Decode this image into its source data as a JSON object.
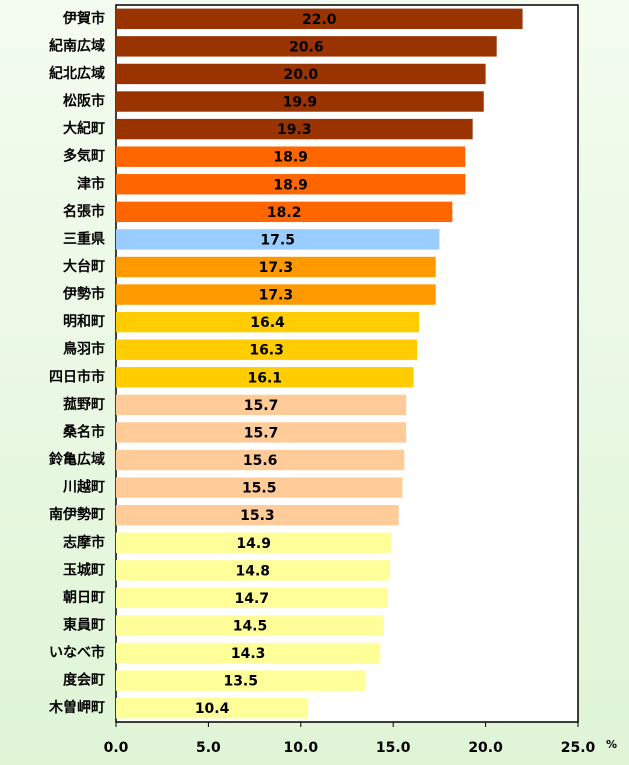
{
  "chart_data": {
    "type": "bar",
    "orientation": "horizontal",
    "categories": [
      "伊賀市",
      "紀南広域",
      "紀北広域",
      "松阪市",
      "大紀町",
      "多気町",
      "津市",
      "名張市",
      "三重県",
      "大台町",
      "伊勢市",
      "明和町",
      "鳥羽市",
      "四日市市",
      "菰野町",
      "桑名市",
      "鈴亀広域",
      "川越町",
      "南伊勢町",
      "志摩市",
      "玉城町",
      "朝日町",
      "東員町",
      "いなべ市",
      "度会町",
      "木曽岬町"
    ],
    "values": [
      22.0,
      20.6,
      20.0,
      19.9,
      19.3,
      18.9,
      18.9,
      18.2,
      17.5,
      17.3,
      17.3,
      16.4,
      16.3,
      16.1,
      15.7,
      15.7,
      15.6,
      15.5,
      15.3,
      14.9,
      14.8,
      14.7,
      14.5,
      14.3,
      13.5,
      10.4
    ],
    "value_labels": [
      "22.0",
      "20.6",
      "20.0",
      "19.9",
      "19.3",
      "18.9",
      "18.9",
      "18.2",
      "17.5",
      "17.3",
      "17.3",
      "16.4",
      "16.3",
      "16.1",
      "15.7",
      "15.7",
      "15.6",
      "15.5",
      "15.3",
      "14.9",
      "14.8",
      "14.7",
      "14.5",
      "14.3",
      "13.5",
      "10.4"
    ],
    "colors": [
      "#993300",
      "#993300",
      "#993300",
      "#993300",
      "#993300",
      "#ff6600",
      "#ff6600",
      "#ff6600",
      "#99ccff",
      "#ff9900",
      "#ff9900",
      "#ffcc00",
      "#ffcc00",
      "#ffcc00",
      "#ffcc99",
      "#ffcc99",
      "#ffcc99",
      "#ffcc99",
      "#ffcc99",
      "#ffff99",
      "#ffff99",
      "#ffff99",
      "#ffff99",
      "#ffff99",
      "#ffff99",
      "#ffff99"
    ],
    "xlim": [
      0,
      25
    ],
    "xticks": [
      {
        "value": 0,
        "label": "0.0"
      },
      {
        "value": 5,
        "label": "5.0"
      },
      {
        "value": 10,
        "label": "10.0"
      },
      {
        "value": 15,
        "label": "15.0"
      },
      {
        "value": 20,
        "label": "20.0"
      },
      {
        "value": 25,
        "label": "25.0"
      }
    ],
    "x_unit": "%"
  }
}
